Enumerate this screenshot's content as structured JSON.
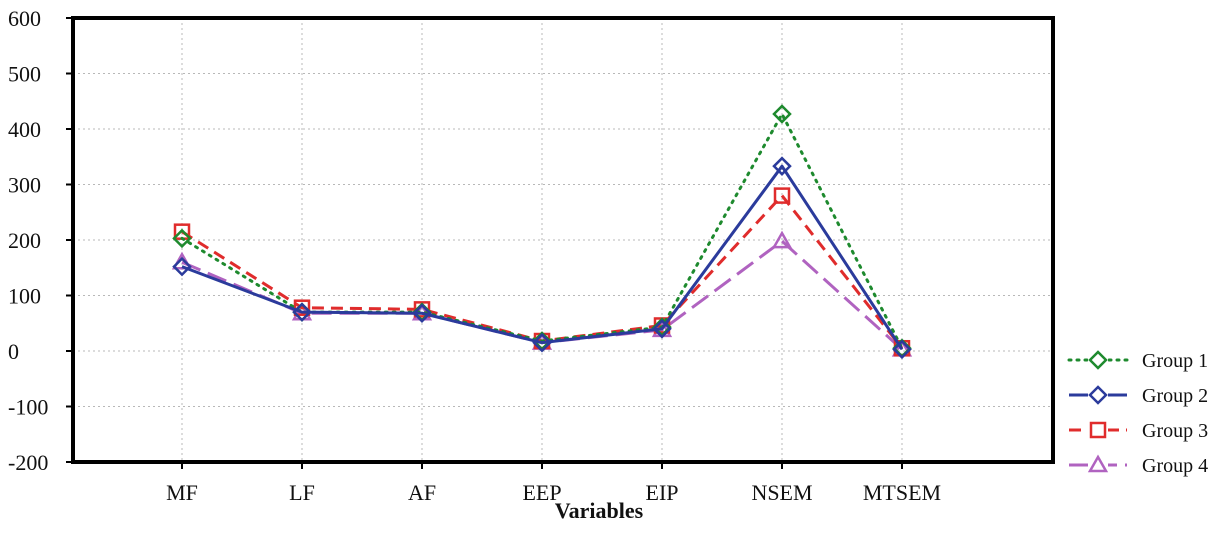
{
  "chart_data": {
    "type": "line",
    "categories": [
      "MF",
      "LF",
      "AF",
      "EEP",
      "EIP",
      "NSEM",
      "MTSEM"
    ],
    "xlabel": "Variables",
    "ylabel": "",
    "ylim": [
      -200,
      600
    ],
    "yticks": [
      -200,
      -100,
      0,
      100,
      200,
      300,
      400,
      500,
      600
    ],
    "grid": true,
    "legend_position": "right",
    "series": [
      {
        "name": "Group 1",
        "values": [
          203,
          70,
          70,
          18,
          43,
          427,
          5
        ],
        "color": "#1e8a2e",
        "line_style": "dotted",
        "marker": "diamond"
      },
      {
        "name": "Group 2",
        "values": [
          152,
          70,
          68,
          15,
          40,
          333,
          3
        ],
        "color": "#2b3b9c",
        "line_style": "solid",
        "marker": "diamond"
      },
      {
        "name": "Group 3",
        "values": [
          215,
          78,
          75,
          18,
          46,
          280,
          5
        ],
        "color": "#e02c2c",
        "line_style": "dashed",
        "marker": "square"
      },
      {
        "name": "Group 4",
        "values": [
          160,
          68,
          68,
          15,
          38,
          198,
          3
        ],
        "color": "#b063c0",
        "line_style": "longdash",
        "marker": "triangle"
      }
    ]
  }
}
